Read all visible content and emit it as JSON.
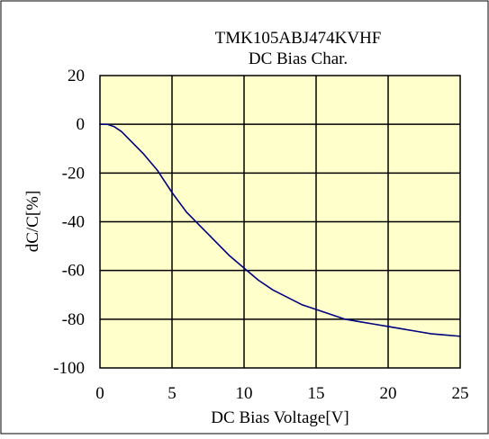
{
  "chart_data": {
    "type": "line",
    "title": "TMK105ABJ474KVHF",
    "subtitle": "DC Bias Char.",
    "xlabel": "DC Bias Voltage[V]",
    "ylabel": "dC/C[%]",
    "xlim": [
      0,
      25
    ],
    "ylim": [
      -100,
      20
    ],
    "x_ticks": [
      0,
      5,
      10,
      15,
      20,
      25
    ],
    "y_ticks": [
      20,
      0,
      -20,
      -40,
      -60,
      -80,
      -100
    ],
    "grid": true,
    "legend": "none",
    "colors": {
      "plot_background": "#ffffcc",
      "line": "#000080",
      "grid": "#000000",
      "frame": "#000000"
    },
    "series": [
      {
        "x": [
          0,
          0.5,
          1,
          1.5,
          2,
          3,
          4,
          5,
          6,
          7,
          8,
          9,
          10,
          11,
          12,
          13,
          14,
          15,
          16,
          17,
          18,
          19,
          20,
          21,
          22,
          23,
          24,
          25
        ],
        "y": [
          0,
          0,
          -1,
          -3,
          -6,
          -12,
          -19,
          -28,
          -36,
          -42,
          -48,
          -54,
          -59,
          -64,
          -68,
          -71,
          -74,
          -76,
          -78,
          -80,
          -81,
          -82,
          -83,
          -84,
          -85,
          -86,
          -86.5,
          -87
        ]
      }
    ]
  }
}
